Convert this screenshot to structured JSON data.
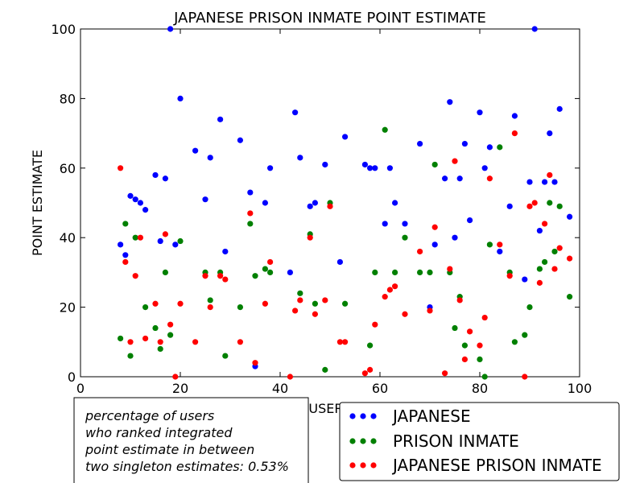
{
  "chart_data": {
    "type": "scatter",
    "title": "JAPANESE PRISON INMATE POINT ESTIMATE",
    "xlabel": "USERS",
    "ylabel": "POINT ESTIMATE",
    "xlim": [
      0,
      100
    ],
    "ylim": [
      0,
      100
    ],
    "xticks": [
      "0",
      "20",
      "40",
      "60",
      "80",
      "100"
    ],
    "yticks": [
      "0",
      "20",
      "40",
      "60",
      "80",
      "100"
    ],
    "legend_position": "bottom-right",
    "grid": false,
    "series": [
      {
        "name": "JAPANESE",
        "color": "#0000ff",
        "x": [
          8,
          9,
          10,
          11,
          12,
          13,
          15,
          16,
          17,
          18,
          19,
          20,
          23,
          25,
          26,
          28,
          29,
          32,
          34,
          35,
          37,
          38,
          42,
          43,
          44,
          46,
          47,
          49,
          52,
          53,
          57,
          58,
          59,
          61,
          62,
          63,
          65,
          68,
          70,
          71,
          73,
          74,
          75,
          76,
          77,
          78,
          80,
          81,
          82,
          84,
          86,
          87,
          89,
          90,
          91,
          92,
          93,
          94,
          95,
          96,
          98
        ],
        "y": [
          38,
          35,
          52,
          51,
          50,
          48,
          58,
          39,
          57,
          100,
          38,
          80,
          65,
          51,
          63,
          74,
          36,
          68,
          53,
          3,
          50,
          60,
          30,
          76,
          63,
          49,
          50,
          61,
          33,
          69,
          61,
          60,
          60,
          44,
          60,
          50,
          44,
          67,
          20,
          38,
          57,
          79,
          40,
          57,
          67,
          45,
          76,
          60,
          66,
          36,
          49,
          75,
          28,
          56,
          100,
          42,
          56,
          70,
          56,
          77,
          46
        ]
      },
      {
        "name": "PRISON INMATE",
        "color": "#008000",
        "x": [
          8,
          9,
          10,
          11,
          13,
          15,
          16,
          17,
          18,
          20,
          25,
          26,
          28,
          29,
          32,
          34,
          35,
          37,
          38,
          44,
          46,
          47,
          49,
          50,
          53,
          58,
          59,
          61,
          63,
          65,
          68,
          70,
          71,
          74,
          75,
          76,
          77,
          80,
          81,
          82,
          84,
          86,
          87,
          89,
          90,
          92,
          93,
          94,
          95,
          96,
          98
        ],
        "y": [
          11,
          44,
          6,
          40,
          20,
          14,
          8,
          30,
          12,
          39,
          30,
          22,
          30,
          6,
          20,
          44,
          29,
          31,
          30,
          24,
          41,
          21,
          2,
          50,
          21,
          9,
          30,
          71,
          30,
          40,
          30,
          30,
          61,
          30,
          14,
          23,
          9,
          5,
          0,
          38,
          66,
          30,
          10,
          12,
          20,
          31,
          33,
          50,
          36,
          49,
          23
        ]
      },
      {
        "name": "JAPANESE PRISON INMATE",
        "color": "#ff0000",
        "x": [
          8,
          9,
          10,
          11,
          12,
          13,
          15,
          16,
          17,
          18,
          19,
          20,
          23,
          25,
          26,
          28,
          29,
          32,
          34,
          35,
          37,
          38,
          42,
          43,
          44,
          46,
          47,
          49,
          50,
          52,
          53,
          57,
          58,
          59,
          61,
          62,
          63,
          65,
          68,
          70,
          71,
          73,
          74,
          75,
          76,
          77,
          78,
          80,
          81,
          82,
          84,
          86,
          87,
          89,
          90,
          91,
          92,
          93,
          94,
          95,
          96,
          98
        ],
        "y": [
          60,
          33,
          10,
          29,
          40,
          11,
          21,
          10,
          41,
          15,
          0,
          21,
          10,
          29,
          20,
          29,
          28,
          10,
          47,
          4,
          21,
          33,
          0,
          19,
          22,
          40,
          18,
          22,
          49,
          10,
          10,
          1,
          2,
          15,
          23,
          25,
          26,
          18,
          36,
          19,
          43,
          1,
          31,
          62,
          22,
          5,
          13,
          9,
          17,
          57,
          38,
          29,
          70,
          0,
          49,
          50,
          27,
          44,
          58,
          31,
          37,
          34
        ]
      }
    ]
  },
  "annotation": {
    "lines": [
      "percentage of users",
      "who ranked integrated",
      "point estimate in between",
      "two singleton estimates: 0.53%"
    ]
  }
}
